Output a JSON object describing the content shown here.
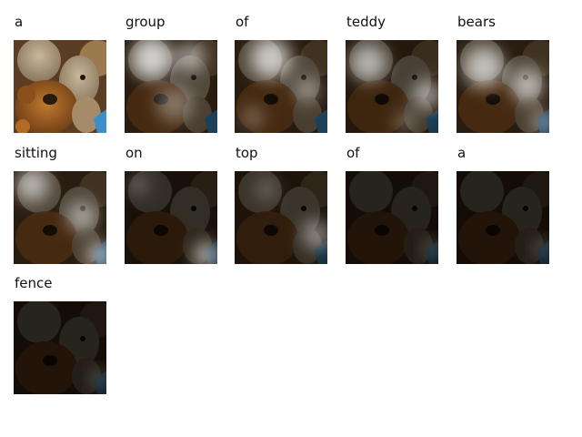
{
  "words": [
    "a",
    "group",
    "of",
    "teddy",
    "bears",
    "sitting",
    "on",
    "top",
    "of",
    "a",
    "fence"
  ],
  "icons": [
    "teddy-bear-photo",
    "attention-map-overlay"
  ]
}
